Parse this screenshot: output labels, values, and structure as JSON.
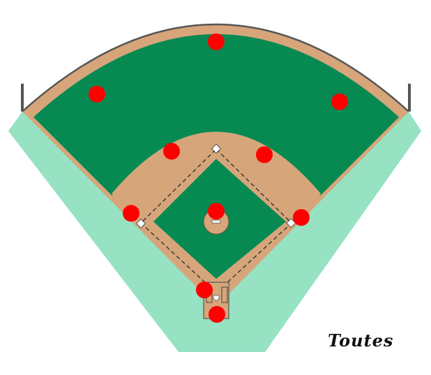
{
  "caption": "Toutes",
  "colors": {
    "foul_territory": "#96E2C3",
    "grass": "#068A52",
    "dirt": "#D6A57A",
    "fence": "#555555",
    "player": "#FF0000",
    "base": "#FFFFFF"
  },
  "positions": [
    {
      "id": "center-fielder"
    },
    {
      "id": "left-fielder"
    },
    {
      "id": "right-fielder"
    },
    {
      "id": "shortstop"
    },
    {
      "id": "second-baseman"
    },
    {
      "id": "third-baseman"
    },
    {
      "id": "first-baseman"
    },
    {
      "id": "pitcher"
    },
    {
      "id": "batter"
    },
    {
      "id": "catcher"
    }
  ]
}
